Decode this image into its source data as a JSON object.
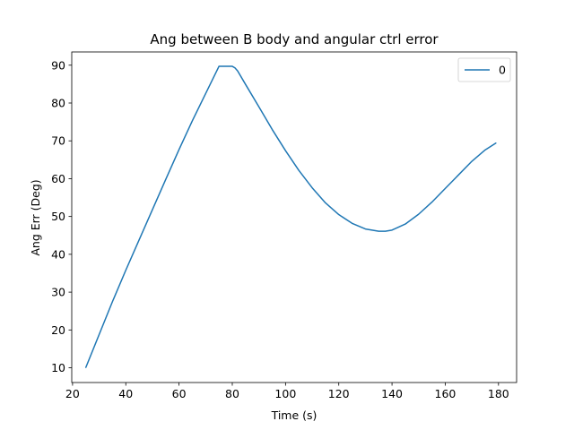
{
  "chart_data": {
    "type": "line",
    "title": "Ang between B body and angular ctrl error",
    "xlabel": "Time (s)",
    "ylabel": "Ang Err (Deg)",
    "xlim": [
      19.7,
      186.8
    ],
    "ylim": [
      6.1,
      93.5
    ],
    "xticks": [
      20,
      40,
      60,
      80,
      100,
      120,
      140,
      160,
      180
    ],
    "yticks": [
      10,
      20,
      30,
      40,
      50,
      60,
      70,
      80,
      90
    ],
    "grid": false,
    "legend": {
      "placement": "top-right",
      "entries": [
        "0"
      ]
    },
    "series": [
      {
        "name": "0",
        "color": "#1f77b4",
        "x": [
          25,
          30,
          35,
          40,
          45,
          50,
          55,
          60,
          65,
          70,
          75,
          80,
          81,
          82,
          85,
          90,
          95,
          100,
          105,
          110,
          115,
          120,
          125,
          130,
          135,
          137.5,
          140,
          145,
          150,
          155,
          160,
          165,
          170,
          175,
          179
        ],
        "y": [
          10.1,
          18.8,
          27.5,
          35.8,
          43.8,
          51.8,
          59.8,
          67.7,
          75.3,
          82.5,
          89.7,
          89.7,
          89.3,
          88.5,
          84.9,
          79.0,
          73.0,
          67.4,
          62.2,
          57.6,
          53.6,
          50.5,
          48.2,
          46.7,
          46.1,
          46.1,
          46.4,
          48.0,
          50.6,
          53.8,
          57.4,
          61.0,
          64.6,
          67.6,
          69.4
        ]
      }
    ]
  }
}
